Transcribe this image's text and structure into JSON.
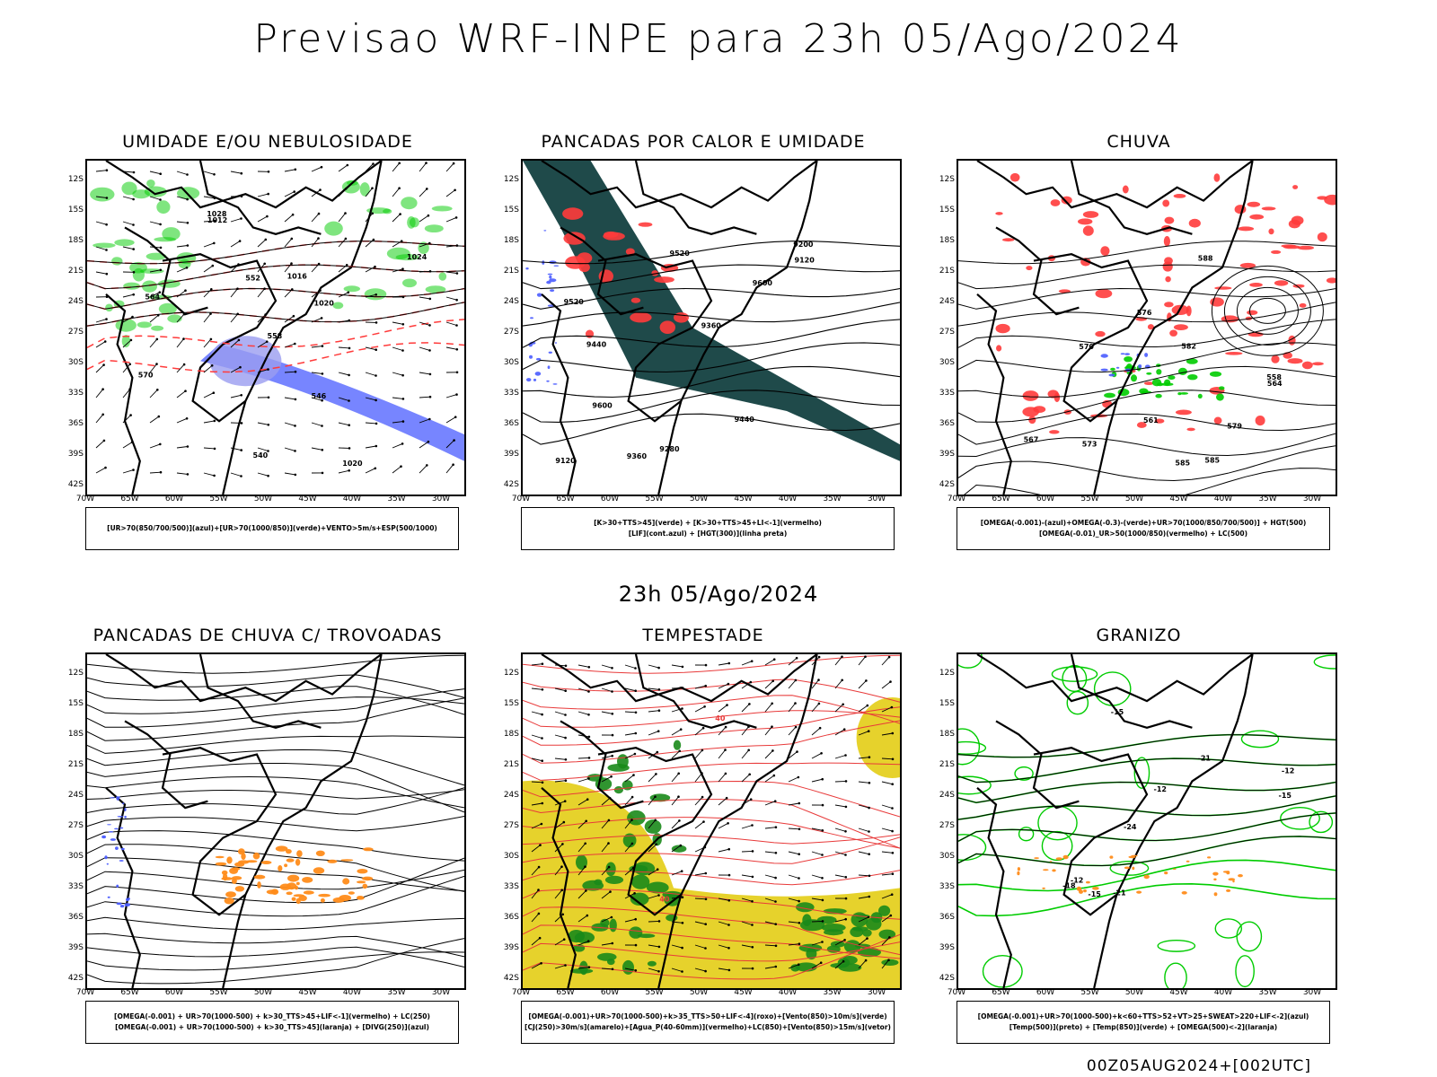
{
  "header": {
    "title": "Previsao WRF-INPE  para 23h 05/Ago/2024"
  },
  "subtitle": "23h 05/Ago/2024",
  "footer": "00Z05AUG2024+[002UTC]",
  "axes": {
    "lat": [
      "12S",
      "15S",
      "18S",
      "21S",
      "24S",
      "27S",
      "30S",
      "33S",
      "36S",
      "39S",
      "42S"
    ],
    "lon": [
      "70W",
      "65W",
      "60W",
      "55W",
      "50W",
      "45W",
      "40W",
      "35W",
      "30W"
    ]
  },
  "colors": {
    "blue": "#4a5cff",
    "lightblue": "#9a9cf0",
    "green": "#00cc00",
    "red": "#ff3b3b",
    "darkteal": "#1f4a4a",
    "orange": "#ff8c1a",
    "yellow": "#e6d22c",
    "darkgreen": "#1a8a1a"
  },
  "panels": [
    {
      "id": "umidade",
      "title": "UMIDADE E/OU NEBULOSIDADE",
      "legend": [
        "[UR>70(850/700/500)](azul)+[UR>70(1000/850)](verde)+VENTO>5m/s+ESP(500/1000)"
      ],
      "labels": [
        "1020",
        "1016",
        "1012",
        "1024",
        "1028",
        "570",
        "564",
        "558",
        "552",
        "546",
        "540",
        "1020"
      ]
    },
    {
      "id": "pancadas-calor",
      "title": "PANCADAS POR CALOR E UMIDADE",
      "legend": [
        "[K>30+TTS>45](verde) + [K>30+TTS>45+LI<-1](vermelho)",
        "[LIF](cont.azul) + [HGT(300)](linha preta)"
      ],
      "labels": [
        "9600",
        "9520",
        "9440",
        "9360",
        "9280",
        "9200",
        "9120",
        "9600",
        "9520",
        "9440",
        "9360",
        "9120"
      ]
    },
    {
      "id": "chuva",
      "title": "CHUVA",
      "legend": [
        "[OMEGA(-0.001)-(azul)+OMEGA(-0.3)-(verde)+UR>70(1000/850/700/500)] + HGT(500)",
        "[OMEGA(-0.01)_UR>50(1000/850)(vermelho) + LC(500)"
      ],
      "labels": [
        "585",
        "582",
        "579",
        "576",
        "573",
        "570",
        "567",
        "564",
        "561",
        "558",
        "588",
        "585"
      ]
    },
    {
      "id": "pancadas-trovoadas",
      "title": "PANCADAS DE CHUVA C/ TROVOADAS",
      "legend": [
        "[OMEGA(-0.001) + UR>70(1000-500) + k>30_TTS>45+LIF<-1](vermelho) + LC(250)",
        "[OMEGA(-0.001) + UR>70(1000-500) + k>30_TTS>45](laranja) + [DIVG(250)](azul)"
      ],
      "labels": []
    },
    {
      "id": "tempestade",
      "title": "TEMPESTADE",
      "legend": [
        "[OMEGA(-0.001)+UR>70(1000-500)+k>35_TTS>50+LIF<-4](roxo)+[Vento(850)>10m/s](verde)",
        "[CJ(250)>30m/s](amarelo)+[Agua_P(40-60mm)](vermelho)+LC(850)+[Vento(850)>15m/s](vetor)"
      ],
      "labels": [
        "40",
        "40"
      ]
    },
    {
      "id": "granizo",
      "title": "GRANIZO",
      "legend": [
        "[OMEGA(-0.001)+UR>70(1000-500)+k<60+TTS>52+VT>25+SWEAT>220+LIF<-2](azul)",
        "[Temp(500)](preto) + [Temp(850)](verde) + [OMEGA(500)<-2](laranja)"
      ],
      "labels": [
        "-12",
        "-12",
        "-15",
        "-15",
        "-18",
        "-21",
        "-21",
        "-24",
        "-12",
        "-15"
      ]
    }
  ]
}
